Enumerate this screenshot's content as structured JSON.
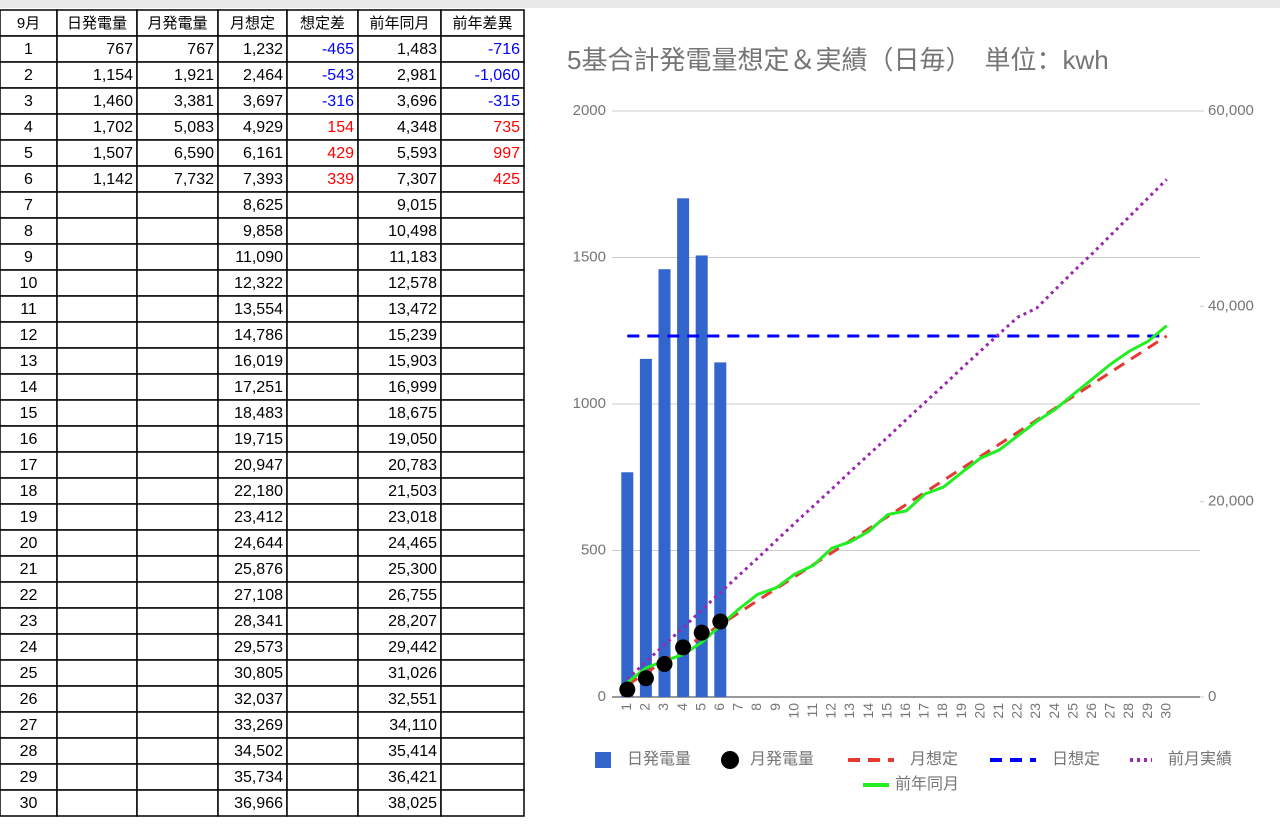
{
  "table": {
    "headers": [
      "9月",
      "日発電量",
      "月発電量",
      "月想定",
      "想定差",
      "前年同月",
      "前年差異"
    ],
    "rows": [
      [
        "1",
        "767",
        "767",
        "1,232",
        "-465",
        "1,483",
        "-716"
      ],
      [
        "2",
        "1,154",
        "1,921",
        "2,464",
        "-543",
        "2,981",
        "-1,060"
      ],
      [
        "3",
        "1,460",
        "3,381",
        "3,697",
        "-316",
        "3,696",
        "-315"
      ],
      [
        "4",
        "1,702",
        "5,083",
        "4,929",
        "154",
        "4,348",
        "735"
      ],
      [
        "5",
        "1,507",
        "6,590",
        "6,161",
        "429",
        "5,593",
        "997"
      ],
      [
        "6",
        "1,142",
        "7,732",
        "7,393",
        "339",
        "7,307",
        "425"
      ],
      [
        "7",
        null,
        null,
        "8,625",
        null,
        "9,015",
        null
      ],
      [
        "8",
        null,
        null,
        "9,858",
        null,
        "10,498",
        null
      ],
      [
        "9",
        null,
        null,
        "11,090",
        null,
        "11,183",
        null
      ],
      [
        "10",
        null,
        null,
        "12,322",
        null,
        "12,578",
        null
      ],
      [
        "11",
        null,
        null,
        "13,554",
        null,
        "13,472",
        null
      ],
      [
        "12",
        null,
        null,
        "14,786",
        null,
        "15,239",
        null
      ],
      [
        "13",
        null,
        null,
        "16,019",
        null,
        "15,903",
        null
      ],
      [
        "14",
        null,
        null,
        "17,251",
        null,
        "16,999",
        null
      ],
      [
        "15",
        null,
        null,
        "18,483",
        null,
        "18,675",
        null
      ],
      [
        "16",
        null,
        null,
        "19,715",
        null,
        "19,050",
        null
      ],
      [
        "17",
        null,
        null,
        "20,947",
        null,
        "20,783",
        null
      ],
      [
        "18",
        null,
        null,
        "22,180",
        null,
        "21,503",
        null
      ],
      [
        "19",
        null,
        null,
        "23,412",
        null,
        "23,018",
        null
      ],
      [
        "20",
        null,
        null,
        "24,644",
        null,
        "24,465",
        null
      ],
      [
        "21",
        null,
        null,
        "25,876",
        null,
        "25,300",
        null
      ],
      [
        "22",
        null,
        null,
        "27,108",
        null,
        "26,755",
        null
      ],
      [
        "23",
        null,
        null,
        "28,341",
        null,
        "28,207",
        null
      ],
      [
        "24",
        null,
        null,
        "29,573",
        null,
        "29,442",
        null
      ],
      [
        "25",
        null,
        null,
        "30,805",
        null,
        "31,026",
        null
      ],
      [
        "26",
        null,
        null,
        "32,037",
        null,
        "32,551",
        null
      ],
      [
        "27",
        null,
        null,
        "33,269",
        null,
        "34,110",
        null
      ],
      [
        "28",
        null,
        null,
        "34,502",
        null,
        "35,414",
        null
      ],
      [
        "29",
        null,
        null,
        "35,734",
        null,
        "36,421",
        null
      ],
      [
        "30",
        null,
        null,
        "36,966",
        null,
        "38,025",
        null
      ]
    ]
  },
  "chart_data": {
    "type": "combo",
    "title": "5基合計発電量想定＆実績（日毎）　単位：kwh",
    "categories": [
      "1",
      "2",
      "3",
      "4",
      "5",
      "6",
      "7",
      "8",
      "9",
      "10",
      "11",
      "12",
      "13",
      "14",
      "15",
      "16",
      "17",
      "18",
      "19",
      "20",
      "21",
      "22",
      "23",
      "24",
      "25",
      "26",
      "27",
      "28",
      "29",
      "30"
    ],
    "ylim": [
      0,
      2000
    ],
    "yticks": [
      0,
      500,
      1000,
      1500,
      2000
    ],
    "y2lim": [
      0,
      60000
    ],
    "y2ticks": [
      0,
      {
        "value": 20000,
        "label": "20,000"
      },
      {
        "value": 40000,
        "label": "40,000"
      },
      {
        "value": 60000,
        "label": "60,000"
      }
    ],
    "grid": true,
    "legend": "bottom",
    "series": [
      {
        "name": "日発電量",
        "type": "bar",
        "color": "#3366cc",
        "values": [
          767,
          1154,
          1460,
          1702,
          1507,
          1142,
          null,
          null,
          null,
          null,
          null,
          null,
          null,
          null,
          null,
          null,
          null,
          null,
          null,
          null,
          null,
          null,
          null,
          null,
          null,
          null,
          null,
          null,
          null,
          null
        ]
      },
      {
        "name": "月発電量",
        "type": "dot",
        "axis": "y2",
        "color": "#000000",
        "values": [
          767,
          1921,
          3381,
          5083,
          6590,
          7732,
          null,
          null,
          null,
          null,
          null,
          null,
          null,
          null,
          null,
          null,
          null,
          null,
          null,
          null,
          null,
          null,
          null,
          null,
          null,
          null,
          null,
          null,
          null,
          null
        ]
      },
      {
        "name": "月想定",
        "type": "line",
        "axis": "y2",
        "dash": "dashed",
        "color": "#e53935",
        "values": [
          1232,
          2464,
          3697,
          4929,
          6161,
          7393,
          8625,
          9858,
          11090,
          12322,
          13554,
          14786,
          16019,
          17251,
          18483,
          19715,
          20947,
          22180,
          23412,
          24644,
          25876,
          27108,
          28341,
          29573,
          30805,
          32037,
          33269,
          34502,
          35734,
          36966
        ]
      },
      {
        "name": "日想定",
        "type": "line",
        "dash": "dashed",
        "color": "#0000ff",
        "values": [
          1232,
          1232,
          1232,
          1232,
          1232,
          1232,
          1232,
          1232,
          1232,
          1232,
          1232,
          1232,
          1232,
          1232,
          1232,
          1232,
          1232,
          1232,
          1232,
          1232,
          1232,
          1232,
          1232,
          1232,
          1232,
          1232,
          1232,
          1232,
          1232,
          1232
        ]
      },
      {
        "name": "前月実績",
        "type": "line",
        "axis": "y2",
        "dash": "dotted",
        "color": "#9c27b0",
        "values": [
          1800,
          3600,
          5350,
          7100,
          8900,
          10700,
          12450,
          14200,
          16000,
          17800,
          19550,
          21300,
          23100,
          24850,
          26600,
          28400,
          30150,
          31900,
          33700,
          35450,
          37200,
          38900,
          39800,
          41700,
          43600,
          45400,
          47300,
          49200,
          51100,
          53000
        ]
      },
      {
        "name": "前年同月",
        "type": "line",
        "axis": "y2",
        "dash": "solid",
        "color": "#22ee22",
        "values": [
          1483,
          2981,
          3696,
          4348,
          5593,
          7307,
          9015,
          10498,
          11183,
          12578,
          13472,
          15239,
          15903,
          16999,
          18675,
          19050,
          20783,
          21503,
          23018,
          24465,
          25300,
          26755,
          28207,
          29442,
          31026,
          32551,
          34110,
          35414,
          36421,
          38025
        ]
      }
    ]
  }
}
